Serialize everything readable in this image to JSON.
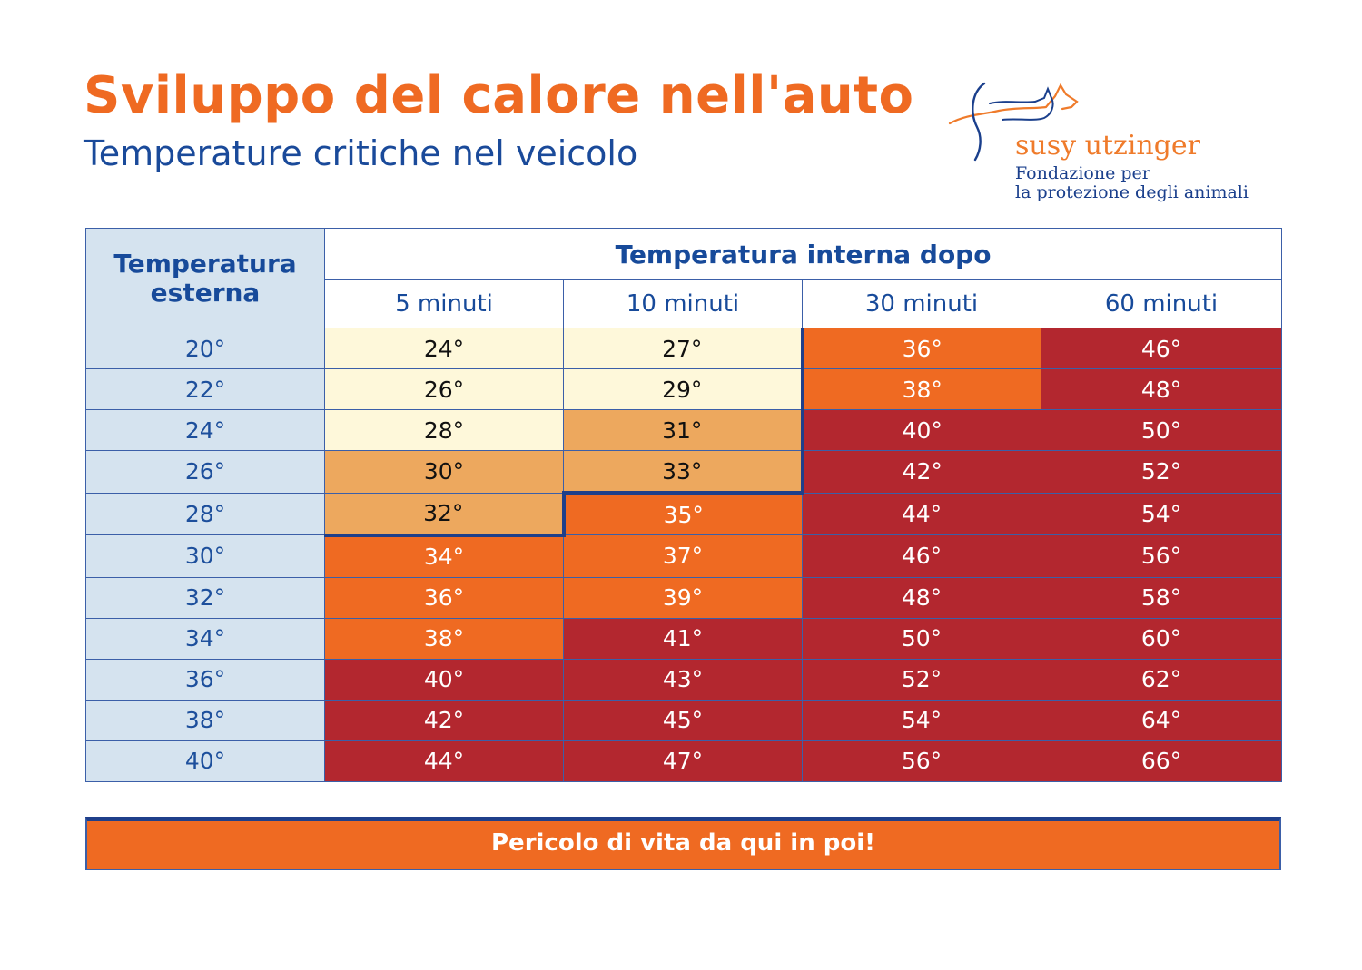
{
  "header": {
    "title": "Sviluppo del calore nell'auto",
    "subtitle": "Temperature critiche nel veicolo"
  },
  "logo": {
    "name": "susy utzinger",
    "line1": "Fondazione per",
    "line2": "la protezione degli animali",
    "icon": "dog-cat-outline-icon"
  },
  "table": {
    "corner_label": "Temperatura esterna",
    "group_header": "Temperatura interna dopo",
    "columns": [
      "5 minuti",
      "10 minuti",
      "30 minuti",
      "60 minuti"
    ],
    "rows": [
      {
        "outside": "20°",
        "values": [
          "24°",
          "27°",
          "36°",
          "46°"
        ]
      },
      {
        "outside": "22°",
        "values": [
          "26°",
          "29°",
          "38°",
          "48°"
        ]
      },
      {
        "outside": "24°",
        "values": [
          "28°",
          "31°",
          "40°",
          "50°"
        ]
      },
      {
        "outside": "26°",
        "values": [
          "30°",
          "33°",
          "42°",
          "52°"
        ]
      },
      {
        "outside": "28°",
        "values": [
          "32°",
          "35°",
          "44°",
          "54°"
        ]
      },
      {
        "outside": "30°",
        "values": [
          "34°",
          "37°",
          "46°",
          "56°"
        ]
      },
      {
        "outside": "32°",
        "values": [
          "36°",
          "39°",
          "48°",
          "58°"
        ]
      },
      {
        "outside": "34°",
        "values": [
          "38°",
          "41°",
          "50°",
          "60°"
        ]
      },
      {
        "outside": "36°",
        "values": [
          "40°",
          "43°",
          "52°",
          "62°"
        ]
      },
      {
        "outside": "38°",
        "values": [
          "42°",
          "45°",
          "54°",
          "64°"
        ]
      },
      {
        "outside": "40°",
        "values": [
          "44°",
          "47°",
          "56°",
          "66°"
        ]
      }
    ]
  },
  "legend": {
    "danger_text": "Pericolo di vita da qui in poi!"
  },
  "colors": {
    "title_orange": "#ef6a22",
    "brand_blue": "#1a4a9a",
    "cell_yellow": "#fef8da",
    "cell_light_orange": "#eda85e",
    "cell_orange": "#ef6a22",
    "cell_red": "#b3272f",
    "label_bg": "#d5e3ef"
  }
}
